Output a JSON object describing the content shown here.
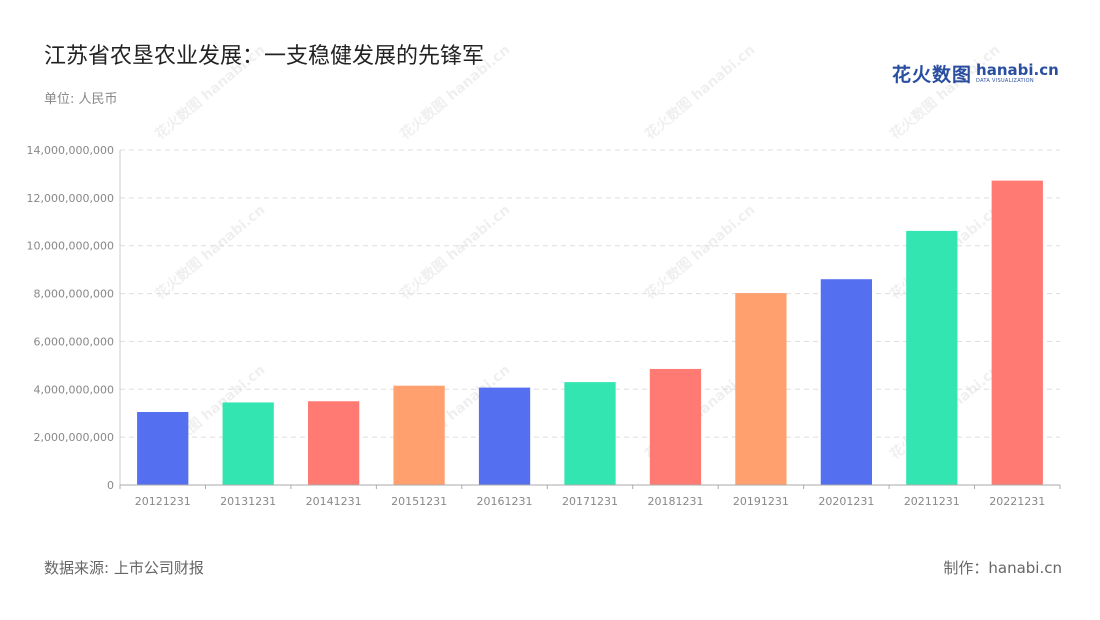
{
  "header": {
    "title": "江苏省农垦农业发展：一支稳健发展的先锋军",
    "unit": "单位: 人民币"
  },
  "logo": {
    "cn": "花火数图",
    "en": "hanabi.cn",
    "en_sub": "DATA VISUALIZATION"
  },
  "footer": {
    "source": "数据来源: 上市公司财报",
    "credit": "制作：hanabi.cn"
  },
  "chart_data": {
    "type": "bar",
    "title": "江苏省农垦农业发展：一支稳健发展的先锋军",
    "xlabel": "",
    "ylabel": "",
    "categories": [
      "20121231",
      "20131231",
      "20141231",
      "20151231",
      "20161231",
      "20171231",
      "20181231",
      "20191231",
      "20201231",
      "20211231",
      "20221231"
    ],
    "values": [
      3050000000,
      3450000000,
      3500000000,
      4150000000,
      4070000000,
      4300000000,
      4850000000,
      8020000000,
      8600000000,
      10620000000,
      12720000000
    ],
    "ylim": [
      0,
      14000000000
    ],
    "yticks": [
      "0",
      "2,000,000,000",
      "4,000,000,000",
      "6,000,000,000",
      "8,000,000,000",
      "10,000,000,000",
      "12,000,000,000",
      "14,000,000,000"
    ],
    "ytick_values": [
      0,
      2000000000,
      4000000000,
      6000000000,
      8000000000,
      10000000000,
      12000000000,
      14000000000
    ],
    "grid": true,
    "legend": "none",
    "colors": [
      "#5470f0",
      "#33e5b0",
      "#ff7a72",
      "#ffa06e"
    ]
  }
}
